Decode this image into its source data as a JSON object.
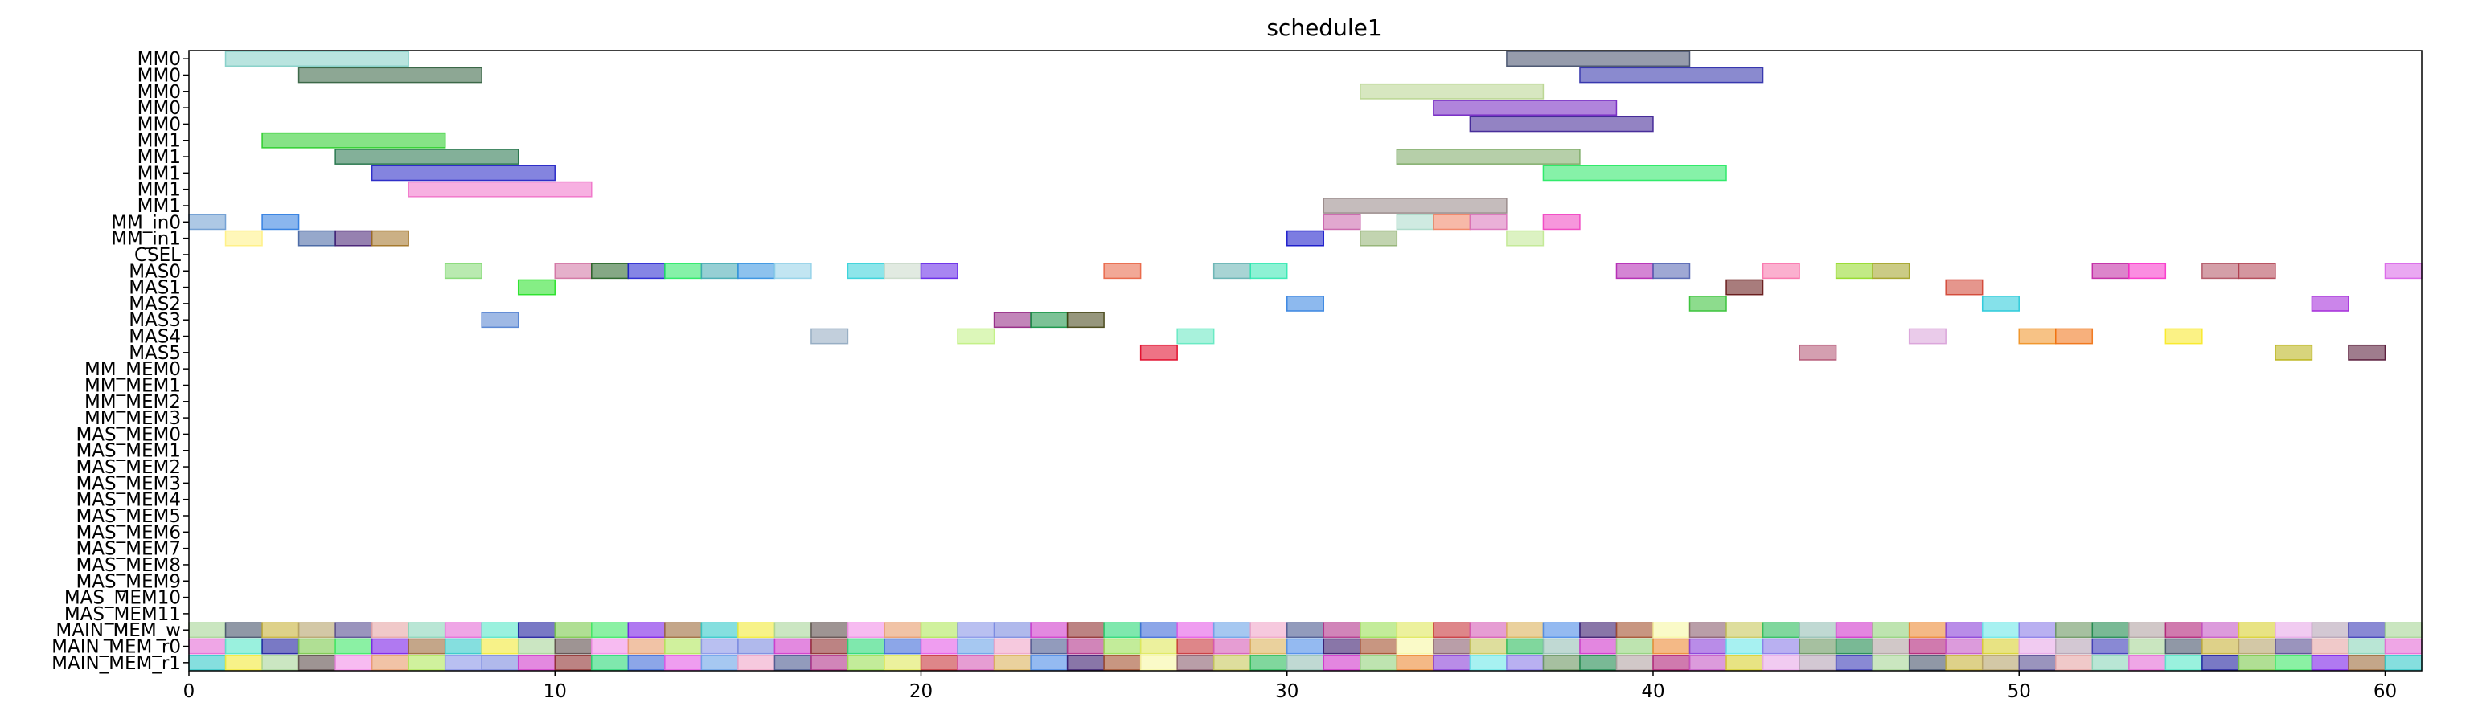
{
  "chart_data": {
    "type": "gantt",
    "title": "schedule1",
    "xlabel": "",
    "ylabel": "",
    "xlim": [
      0,
      61
    ],
    "xticks": [
      0,
      10,
      20,
      30,
      40,
      50,
      60
    ],
    "grid": false,
    "legend": "none",
    "rows": [
      "MM0",
      "MM0",
      "MM0",
      "MM0",
      "MM0",
      "MM1",
      "MM1",
      "MM1",
      "MM1",
      "MM1",
      "MM_in0",
      "MM_in1",
      "CSEL",
      "MAS0",
      "MAS1",
      "MAS2",
      "MAS3",
      "MAS4",
      "MAS5",
      "MM_MEM0",
      "MM_MEM1",
      "MM_MEM2",
      "MM_MEM3",
      "MAS_MEM0",
      "MAS_MEM1",
      "MAS_MEM2",
      "MAS_MEM3",
      "MAS_MEM4",
      "MAS_MEM5",
      "MAS_MEM6",
      "MAS_MEM7",
      "MAS_MEM8",
      "MAS_MEM9",
      "MAS_MEM10",
      "MAS_MEM11",
      "MAIN_MEM_w",
      "MAIN_MEM_r0",
      "MAIN_MEM_r1"
    ],
    "tasks": [
      {
        "row": 0,
        "start": 1,
        "end": 6,
        "color": "#7fcdc5"
      },
      {
        "row": 0,
        "start": 36,
        "end": 41,
        "color": "#3f4b68"
      },
      {
        "row": 1,
        "start": 3,
        "end": 8,
        "color": "#2f5e3c"
      },
      {
        "row": 1,
        "start": 38,
        "end": 43,
        "color": "#2a2aa8"
      },
      {
        "row": 2,
        "start": 32,
        "end": 37,
        "color": "#b6d48c"
      },
      {
        "row": 3,
        "start": 34,
        "end": 39,
        "color": "#6f1fc0"
      },
      {
        "row": 4,
        "start": 35,
        "end": 40,
        "color": "#3b1e92"
      },
      {
        "row": 5,
        "start": 2,
        "end": 7,
        "color": "#22cc22"
      },
      {
        "row": 6,
        "start": 4,
        "end": 9,
        "color": "#1e7045"
      },
      {
        "row": 6,
        "start": 33,
        "end": 38,
        "color": "#7aa862"
      },
      {
        "row": 7,
        "start": 5,
        "end": 10,
        "color": "#1f1fc4"
      },
      {
        "row": 7,
        "start": 37,
        "end": 42,
        "color": "#22e860"
      },
      {
        "row": 8,
        "start": 6,
        "end": 11,
        "color": "#f070c8"
      },
      {
        "row": 9,
        "start": 31,
        "end": 36,
        "color": "#958585"
      },
      {
        "row": 10,
        "start": 0,
        "end": 1,
        "color": "#6a9ad0"
      },
      {
        "row": 10,
        "start": 2,
        "end": 3,
        "color": "#2a7ae0"
      },
      {
        "row": 10,
        "start": 31,
        "end": 32,
        "color": "#c860a8"
      },
      {
        "row": 10,
        "start": 33,
        "end": 34,
        "color": "#a8d8c8"
      },
      {
        "row": 10,
        "start": 34,
        "end": 35,
        "color": "#f08060"
      },
      {
        "row": 10,
        "start": 35,
        "end": 36,
        "color": "#d870b8"
      },
      {
        "row": 10,
        "start": 37,
        "end": 38,
        "color": "#f040c0"
      },
      {
        "row": 11,
        "start": 1,
        "end": 2,
        "color": "#fff080"
      },
      {
        "row": 11,
        "start": 3,
        "end": 4,
        "color": "#4060a0"
      },
      {
        "row": 11,
        "start": 4,
        "end": 5,
        "color": "#401a70"
      },
      {
        "row": 11,
        "start": 5,
        "end": 6,
        "color": "#a07020"
      },
      {
        "row": 11,
        "start": 30,
        "end": 31,
        "color": "#1010c8"
      },
      {
        "row": 11,
        "start": 32,
        "end": 33,
        "color": "#90b070"
      },
      {
        "row": 11,
        "start": 36,
        "end": 37,
        "color": "#c0e890"
      },
      {
        "row": 13,
        "start": 7,
        "end": 8,
        "color": "#80d870"
      },
      {
        "row": 13,
        "start": 10,
        "end": 11,
        "color": "#d070a0"
      },
      {
        "row": 13,
        "start": 11,
        "end": 12,
        "color": "#206020"
      },
      {
        "row": 13,
        "start": 12,
        "end": 13,
        "color": "#2020d0"
      },
      {
        "row": 13,
        "start": 13,
        "end": 14,
        "color": "#20e860"
      },
      {
        "row": 13,
        "start": 14,
        "end": 15,
        "color": "#40a8b0"
      },
      {
        "row": 13,
        "start": 15,
        "end": 16,
        "color": "#3090e0"
      },
      {
        "row": 13,
        "start": 16,
        "end": 17,
        "color": "#90d0e8"
      },
      {
        "row": 13,
        "start": 18,
        "end": 19,
        "color": "#30d0d8"
      },
      {
        "row": 13,
        "start": 19,
        "end": 20,
        "color": "#c8d8c8"
      },
      {
        "row": 13,
        "start": 20,
        "end": 21,
        "color": "#6020e8"
      },
      {
        "row": 13,
        "start": 25,
        "end": 26,
        "color": "#e86040"
      },
      {
        "row": 13,
        "start": 28,
        "end": 29,
        "color": "#60b0b0"
      },
      {
        "row": 13,
        "start": 29,
        "end": 30,
        "color": "#30e8b0"
      },
      {
        "row": 13,
        "start": 39,
        "end": 40,
        "color": "#b020b0"
      },
      {
        "row": 13,
        "start": 40,
        "end": 41,
        "color": "#5060b0"
      },
      {
        "row": 13,
        "start": 43,
        "end": 44,
        "color": "#f870a8"
      },
      {
        "row": 13,
        "start": 45,
        "end": 46,
        "color": "#90d820"
      },
      {
        "row": 13,
        "start": 46,
        "end": 47,
        "color": "#a0a020"
      },
      {
        "row": 13,
        "start": 52,
        "end": 53,
        "color": "#c020a0"
      },
      {
        "row": 13,
        "start": 53,
        "end": 54,
        "color": "#f830c8"
      },
      {
        "row": 13,
        "start": 55,
        "end": 56,
        "color": "#b05060"
      },
      {
        "row": 13,
        "start": 56,
        "end": 57,
        "color": "#b04050"
      },
      {
        "row": 13,
        "start": 60,
        "end": 61,
        "color": "#d860e8"
      },
      {
        "row": 14,
        "start": 9,
        "end": 10,
        "color": "#20e020"
      },
      {
        "row": 14,
        "start": 42,
        "end": 43,
        "color": "#601010"
      },
      {
        "row": 14,
        "start": 48,
        "end": 49,
        "color": "#d04030"
      },
      {
        "row": 15,
        "start": 30,
        "end": 31,
        "color": "#3080e0"
      },
      {
        "row": 15,
        "start": 41,
        "end": 42,
        "color": "#30c030"
      },
      {
        "row": 15,
        "start": 49,
        "end": 50,
        "color": "#20c8d8"
      },
      {
        "row": 15,
        "start": 58,
        "end": 59,
        "color": "#a020d8"
      },
      {
        "row": 16,
        "start": 8,
        "end": 9,
        "color": "#5080d0"
      },
      {
        "row": 16,
        "start": 22,
        "end": 23,
        "color": "#902080"
      },
      {
        "row": 16,
        "start": 23,
        "end": 24,
        "color": "#109040"
      },
      {
        "row": 16,
        "start": 24,
        "end": 25,
        "color": "#404010"
      },
      {
        "row": 17,
        "start": 17,
        "end": 18,
        "color": "#90a8c0"
      },
      {
        "row": 17,
        "start": 21,
        "end": 22,
        "color": "#c0f080"
      },
      {
        "row": 17,
        "start": 27,
        "end": 28,
        "color": "#60e8c0"
      },
      {
        "row": 17,
        "start": 47,
        "end": 48,
        "color": "#d8a0d8"
      },
      {
        "row": 17,
        "start": 50,
        "end": 51,
        "color": "#f09020"
      },
      {
        "row": 17,
        "start": 51,
        "end": 52,
        "color": "#f07010"
      },
      {
        "row": 17,
        "start": 54,
        "end": 55,
        "color": "#f8e820"
      },
      {
        "row": 18,
        "start": 26,
        "end": 27,
        "color": "#e00020"
      },
      {
        "row": 18,
        "start": 44,
        "end": 45,
        "color": "#b05070"
      },
      {
        "row": 18,
        "start": 57,
        "end": 58,
        "color": "#b8b010"
      },
      {
        "row": 18,
        "start": 59,
        "end": 60,
        "color": "#501030"
      }
    ],
    "memory_rows": {
      "rows": [
        35,
        36,
        37
      ],
      "start": 0,
      "end": 61,
      "colors": [
        "#a6d596",
        "#46536b",
        "#c8b23b",
        "#b6a36b",
        "#564d91",
        "#e6a5a5",
        "#8ad5b9",
        "#e56ad6",
        "#57e7c8",
        "#1f1f9f",
        "#7bc94c",
        "#3ee867",
        "#7b1fe8",
        "#9c6a3b",
        "#34c9c9",
        "#f2ea39",
        "#a9d59a",
        "#5d4d4b",
        "#f28de7",
        "#e89b6b",
        "#b1e75c",
        "#8a96e8",
        "#7b8be0",
        "#d03bcb",
        "#8f3030",
        "#29d877",
        "#3f6bd9",
        "#e55ce6",
        "#6ba3e8",
        "#f0a5c8",
        "#4a588f",
        "#b2338a",
        "#9be056",
        "#e0e85c",
        "#c8353b",
        "#d65cb5",
        "#dcb35c",
        "#4d8ce8",
        "#3a1a6e",
        "#a3502d",
        "#f7f7a3",
        "#8a5d6e",
        "#c8c85c",
        "#2cbc5c",
        "#96c0b6",
        "#d035cb",
        "#92d27b",
        "#ec8a35",
        "#8a3fd8",
        "#6ce8e8",
        "#8a7be8",
        "#6a9661",
        "#1f8a4f",
        "#b3a3a3",
        "#b12278",
        "#c558c5",
        "#d8d030",
        "#e8a9e8",
        "#b6a3b6",
        "#3b3bb7"
      ]
    }
  }
}
